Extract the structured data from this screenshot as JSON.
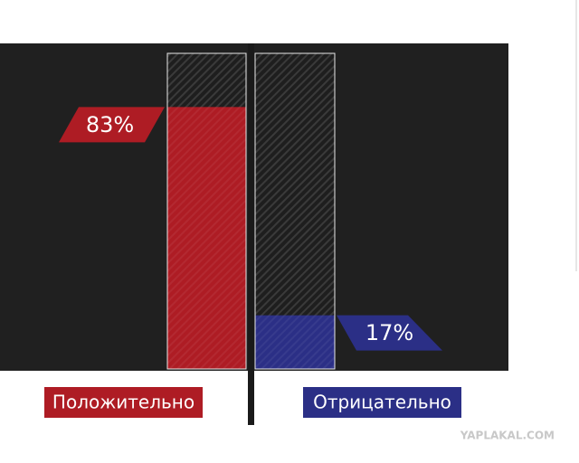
{
  "chart_data": {
    "type": "bar",
    "categories": [
      "Положительно",
      "Отрицательно"
    ],
    "values": [
      83,
      17
    ],
    "value_labels": [
      "83%",
      "17%"
    ],
    "colors": [
      "#ae1c24",
      "#2b2f86"
    ],
    "ylim": [
      0,
      100
    ]
  },
  "watermark": "YAPLAKAL.COM"
}
